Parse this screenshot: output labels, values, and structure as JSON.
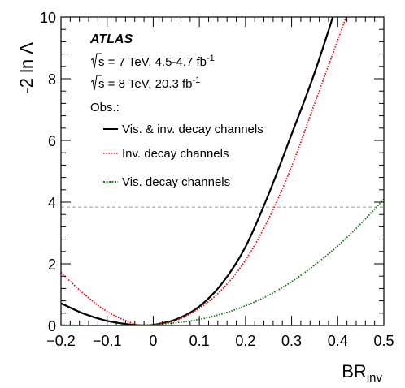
{
  "chart_data": {
    "type": "line",
    "xlabel": "BR",
    "xlabel_sub": "inv",
    "ylabel": "-2 ln Λ",
    "xlim": [
      -0.2,
      0.5
    ],
    "ylim": [
      0,
      10
    ],
    "x_ticks": [
      "−0.2",
      "−0.1",
      "0",
      "0.1",
      "0.2",
      "0.3",
      "0.4",
      "0.5"
    ],
    "y_ticks": [
      "0",
      "2",
      "4",
      "6",
      "8",
      "10"
    ],
    "reference_line": {
      "y": 3.84,
      "style": "dashed",
      "color": "#999999"
    },
    "legend": {
      "experiment": "ATLAS",
      "energy_lines": [
        {
          "sqrt_label": "s = 7 TeV, 4.5-4.7 fb",
          "sup": "-1"
        },
        {
          "sqrt_label": "s = 8 TeV, 20.3 fb",
          "sup": "-1"
        }
      ],
      "header": "Obs.:",
      "placement": "top-left"
    },
    "series": [
      {
        "name": "Vis. & inv. decay channels",
        "color": "#000000",
        "style": "solid",
        "x": [
          -0.2,
          -0.15,
          -0.1,
          -0.05,
          -0.02,
          0.0,
          0.05,
          0.1,
          0.15,
          0.2,
          0.25,
          0.3,
          0.35,
          0.4
        ],
        "y": [
          0.72,
          0.38,
          0.15,
          0.03,
          0.0,
          0.02,
          0.2,
          0.62,
          1.38,
          2.55,
          4.25,
          6.2,
          8.2,
          10.5
        ]
      },
      {
        "name": "Inv. decay channels",
        "color": "#e8141e",
        "style": "dotted",
        "x": [
          -0.2,
          -0.15,
          -0.1,
          -0.05,
          -0.03,
          0.0,
          0.05,
          0.1,
          0.15,
          0.2,
          0.25,
          0.3,
          0.35,
          0.4,
          0.43
        ],
        "y": [
          1.72,
          1.02,
          0.45,
          0.1,
          0.02,
          0.02,
          0.17,
          0.56,
          1.18,
          2.12,
          3.45,
          5.15,
          7.2,
          9.25,
          10.5
        ]
      },
      {
        "name": "Vis. decay channels",
        "color": "#1a7a1a",
        "style": "dotted",
        "x": [
          -0.2,
          -0.15,
          -0.1,
          -0.05,
          0.0,
          0.05,
          0.1,
          0.15,
          0.2,
          0.25,
          0.3,
          0.35,
          0.4,
          0.45,
          0.5
        ],
        "y": [
          0.02,
          0.0,
          0.0,
          0.0,
          0.03,
          0.09,
          0.2,
          0.38,
          0.64,
          0.98,
          1.42,
          1.96,
          2.58,
          3.3,
          4.1
        ]
      }
    ]
  }
}
